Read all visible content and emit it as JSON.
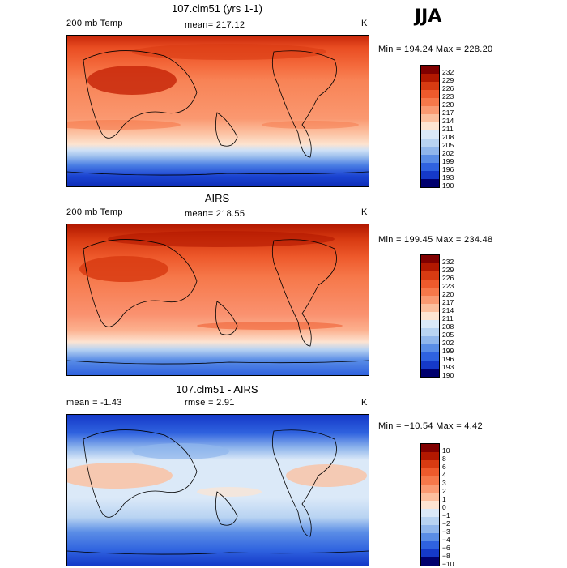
{
  "season": "JJA",
  "panels": [
    {
      "title": "107.clm51 (yrs 1-1)",
      "left_label": "200 mb Temp",
      "center_label": "mean= 217.12",
      "units": "K",
      "minmax": "Min = 194.24 Max = 228.20",
      "colorbar_labels": [
        "232",
        "229",
        "226",
        "223",
        "220",
        "217",
        "214",
        "211",
        "208",
        "205",
        "202",
        "199",
        "196",
        "193",
        "190"
      ]
    },
    {
      "title": "AIRS",
      "left_label": "200 mb Temp",
      "center_label": "mean= 218.55",
      "units": "K",
      "minmax": "Min = 199.45 Max = 234.48",
      "colorbar_labels": [
        "232",
        "229",
        "226",
        "223",
        "220",
        "217",
        "214",
        "211",
        "208",
        "205",
        "202",
        "199",
        "196",
        "193",
        "190"
      ]
    },
    {
      "title": "107.clm51 - AIRS",
      "left_label": "mean =   -1.43",
      "center_label": "rmse =    2.91",
      "units": "K",
      "minmax": "Min = −10.54 Max =    4.42",
      "colorbar_labels": [
        "10",
        "8",
        "6",
        "4",
        "3",
        "2",
        "1",
        "0",
        "−1",
        "−2",
        "−3",
        "−4",
        "−6",
        "−8",
        "−10"
      ]
    }
  ],
  "colors": {
    "temp_scale": [
      "#800000",
      "#b21800",
      "#d83b12",
      "#ee5a2c",
      "#f6784a",
      "#fa9a72",
      "#fcbf9e",
      "#fde4d2",
      "#dbe9f8",
      "#b8d3f2",
      "#90b6ec",
      "#5a8de6",
      "#2f62df",
      "#1539c8",
      "#0a1a9a",
      "#00006e"
    ],
    "diff_scale": [
      "#800000",
      "#b21800",
      "#d83b12",
      "#ee5a2c",
      "#f6784a",
      "#fa9a72",
      "#fcbf9e",
      "#fde4d2",
      "#f7f7f7",
      "#dbe9f8",
      "#b8d3f2",
      "#90b6ec",
      "#5a8de6",
      "#2f62df",
      "#1539c8",
      "#00006e"
    ]
  }
}
